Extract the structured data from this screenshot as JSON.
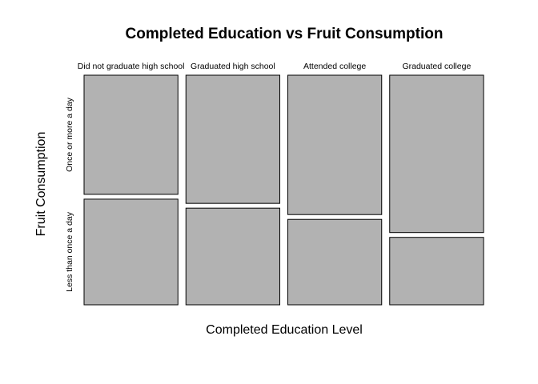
{
  "chart_data": {
    "type": "mosaic",
    "title": "Completed Education vs Fruit Consumption",
    "xlabel": "Completed Education Level",
    "ylabel": "Fruit Consumption",
    "x_categories": [
      "Did not graduate high school",
      "Graduated high school",
      "Attended college",
      "Graduated college"
    ],
    "y_categories": [
      "Once or more a day",
      "Less than once a day"
    ],
    "column_proportions": [
      0.25,
      0.25,
      0.25,
      0.25
    ],
    "cell_proportions": [
      {
        "education": "Did not graduate high school",
        "Once or more a day": 0.53,
        "Less than once a day": 0.47
      },
      {
        "education": "Graduated high school",
        "Once or more a day": 0.57,
        "Less than once a day": 0.43
      },
      {
        "education": "Attended college",
        "Once or more a day": 0.62,
        "Less than once a day": 0.38
      },
      {
        "education": "Graduated college",
        "Once or more a day": 0.7,
        "Less than once a day": 0.3
      }
    ],
    "fill_color": "#b2b2b2"
  }
}
